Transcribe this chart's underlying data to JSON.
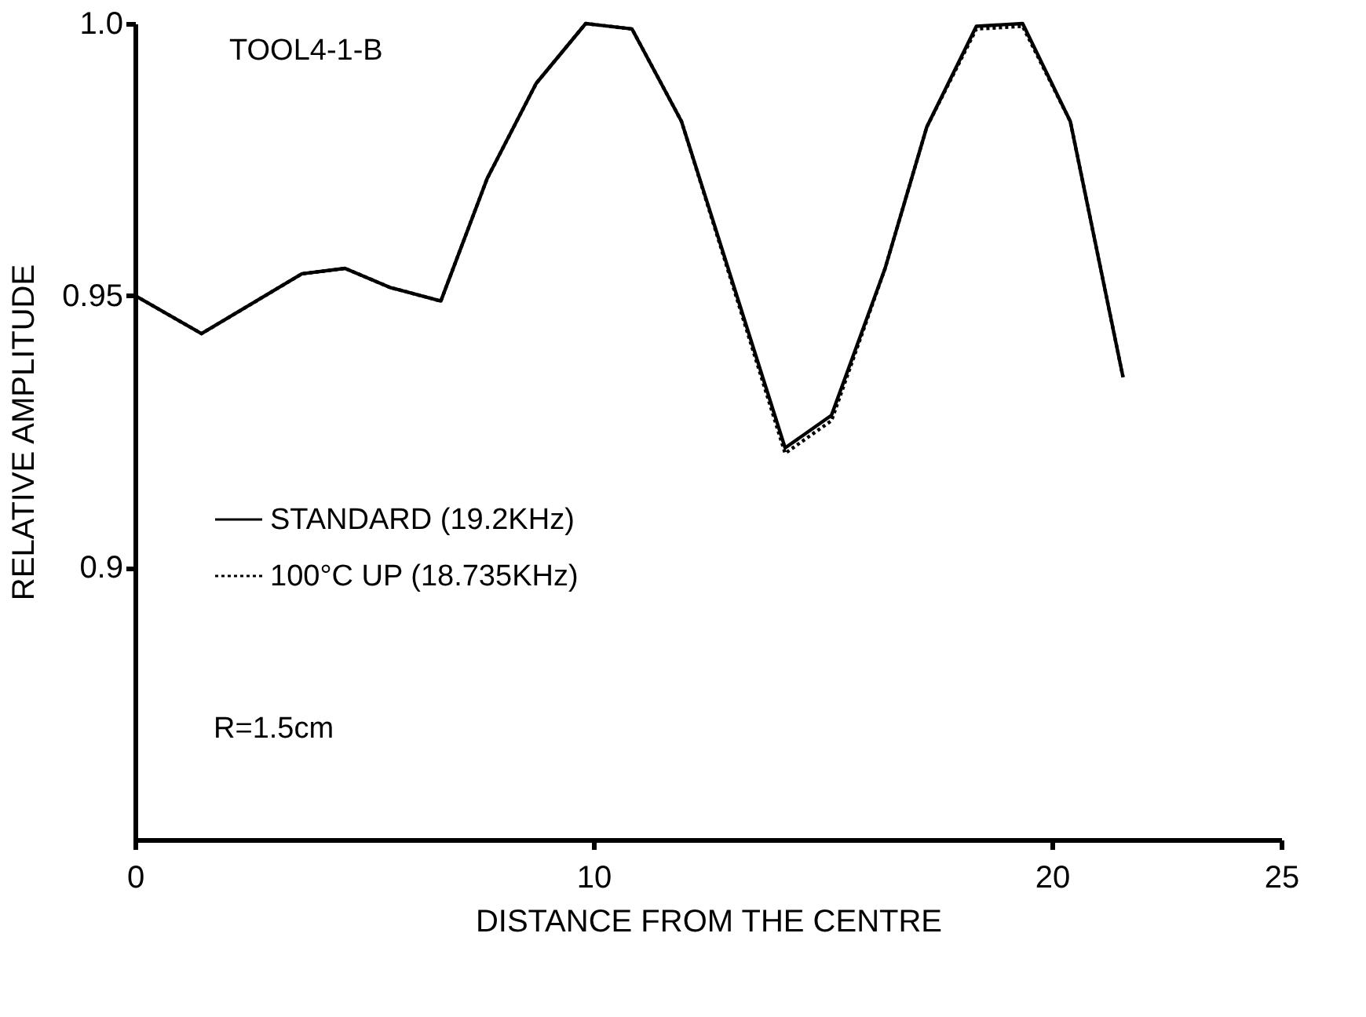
{
  "chart_data": {
    "type": "line",
    "xlabel": "DISTANCE FROM THE CENTRE",
    "ylabel": "RELATIVE AMPLITUDE",
    "annotations": [
      "TOOL4-1-B",
      "R=1.5cm"
    ],
    "x": [
      0,
      1.45,
      3.64,
      4.58,
      5.56,
      6.67,
      7.68,
      8.75,
      9.83,
      10.84,
      11.92,
      14.18,
      15.19,
      16.36,
      17.27,
      18.35,
      19.36,
      20.4,
      21.55
    ],
    "series": [
      {
        "name": "STANDARD (19.2KHz)",
        "color": "#000000",
        "line_style": "solid",
        "values": [
          0.95,
          0.943,
          0.954,
          0.955,
          0.9515,
          0.949,
          0.9715,
          0.989,
          1.0,
          0.999,
          0.982,
          0.922,
          0.928,
          0.955,
          0.981,
          0.9995,
          1.0,
          0.982,
          0.935
        ]
      },
      {
        "name": "100°C UP  (18.735KHz)",
        "color": "#000000",
        "line_style": "dotted",
        "values": [
          0.95,
          0.943,
          0.954,
          0.955,
          0.9515,
          0.949,
          0.9715,
          0.989,
          1.0,
          0.999,
          0.982,
          0.921,
          0.927,
          0.955,
          0.981,
          0.999,
          0.9995,
          0.982,
          0.935
        ]
      }
    ],
    "xlim": [
      0,
      25
    ],
    "xticks": [
      0,
      10,
      20,
      25
    ],
    "ylim": [
      0.85,
      1.0
    ],
    "yticks": [
      {
        "value": 0.9,
        "label": "0.9"
      },
      0.95,
      {
        "value": 1.0,
        "label": "1.0"
      }
    ],
    "grid": false,
    "legend": "bottom left",
    "marker": "none"
  }
}
